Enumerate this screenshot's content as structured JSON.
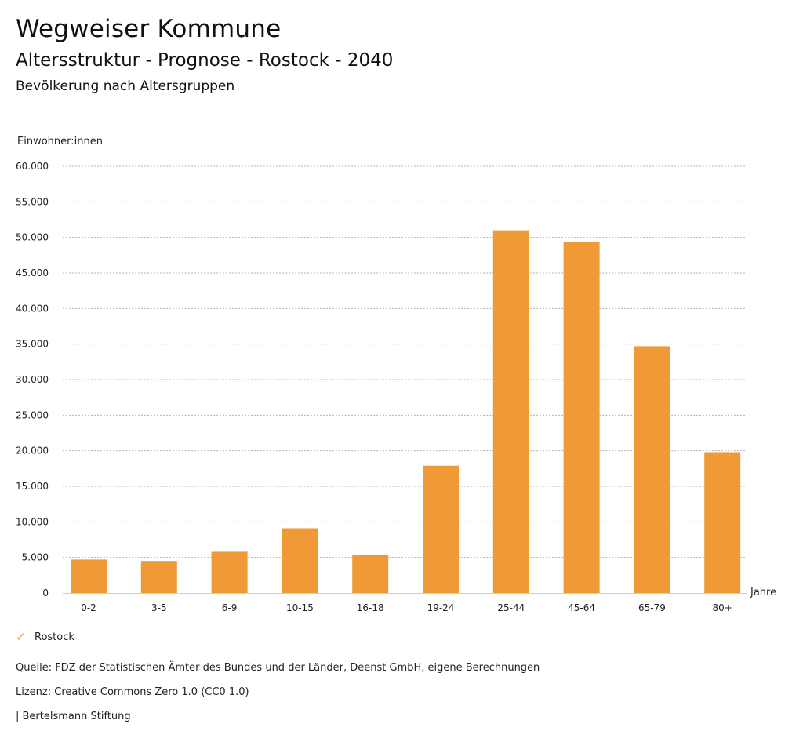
{
  "header": {
    "brand": "Wegweiser Kommune",
    "title": "Altersstruktur - Prognose - Rostock - 2040",
    "subtitle": "Bevölkerung nach Altersgruppen"
  },
  "chart_data": {
    "type": "bar",
    "ylabel": "Einwohner:innen",
    "xlabel": "Jahre",
    "ylim": [
      0,
      60000
    ],
    "yticks": [
      0,
      5000,
      10000,
      15000,
      20000,
      25000,
      30000,
      35000,
      40000,
      45000,
      50000,
      55000,
      60000
    ],
    "ytick_labels": [
      "0",
      "5.000",
      "10.000",
      "15.000",
      "20.000",
      "25.000",
      "30.000",
      "35.000",
      "40.000",
      "45.000",
      "50.000",
      "55.000",
      "60.000"
    ],
    "grid": true,
    "categories": [
      "0-2",
      "3-5",
      "6-9",
      "10-15",
      "16-18",
      "19-24",
      "25-44",
      "45-64",
      "65-79",
      "80+"
    ],
    "series": [
      {
        "name": "Rostock",
        "color": "#ef9a36",
        "values": [
          4700,
          4500,
          5800,
          9100,
          5400,
          17900,
          51000,
          49300,
          34700,
          19800
        ]
      }
    ],
    "legend_position": "bottom-left"
  },
  "legend": {
    "label": "Rostock",
    "icon": "check-icon"
  },
  "footer": {
    "source": "Quelle: FDZ der Statistischen Ämter des Bundes und der Länder, Deenst GmbH, eigene Berechnungen",
    "license": "Lizenz: Creative Commons Zero 1.0 (CC0 1.0)",
    "publisher": "| Bertelsmann Stiftung"
  }
}
